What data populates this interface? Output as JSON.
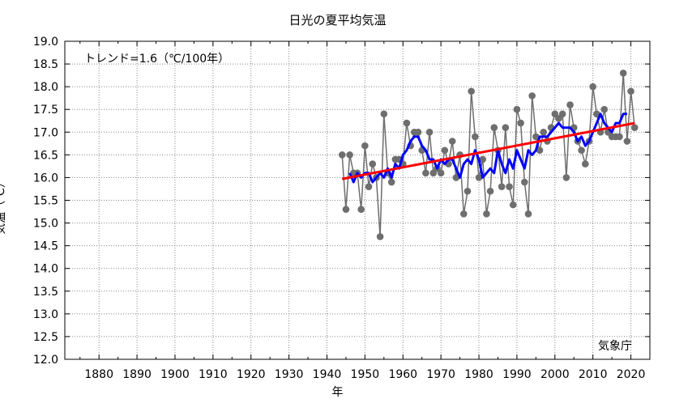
{
  "chart_data": {
    "type": "line",
    "title": "日光の夏平均気温",
    "xlabel": "年",
    "ylabel": "気温（℃）",
    "annotation": "トレンド=1.6（℃/100年）",
    "source_label": "気象庁",
    "xlim": [
      1871,
      2025
    ],
    "ylim": [
      12.0,
      19.0
    ],
    "x_ticks": [
      1880,
      1890,
      1900,
      1910,
      1920,
      1930,
      1940,
      1950,
      1960,
      1970,
      1980,
      1990,
      2000,
      2010,
      2020
    ],
    "y_ticks": [
      "12.0",
      "12.5",
      "13.0",
      "13.5",
      "14.0",
      "14.5",
      "15.0",
      "15.5",
      "16.0",
      "16.5",
      "17.0",
      "17.5",
      "18.0",
      "18.5",
      "19.0"
    ],
    "grid": true,
    "series": [
      {
        "kind": "annual",
        "color": "#6e6e6e",
        "x": [
          1944,
          1945,
          1946,
          1947,
          1948,
          1949,
          1950,
          1951,
          1952,
          1953,
          1954,
          1955,
          1956,
          1957,
          1958,
          1959,
          1960,
          1961,
          1962,
          1963,
          1964,
          1965,
          1966,
          1967,
          1968,
          1969,
          1970,
          1971,
          1972,
          1973,
          1974,
          1975,
          1976,
          1977,
          1978,
          1979,
          1980,
          1981,
          1982,
          1983,
          1984,
          1985,
          1986,
          1987,
          1988,
          1989,
          1990,
          1991,
          1992,
          1993,
          1994,
          1995,
          1996,
          1997,
          1998,
          1999,
          2000,
          2001,
          2002,
          2003,
          2004,
          2005,
          2006,
          2007,
          2008,
          2009,
          2010,
          2011,
          2012,
          2013,
          2014,
          2015,
          2016,
          2017,
          2018,
          2019,
          2020,
          2021
        ],
        "y": [
          16.5,
          15.3,
          16.5,
          16.1,
          16.1,
          15.3,
          16.7,
          15.8,
          16.3,
          16.0,
          14.7,
          17.4,
          16.1,
          15.9,
          16.4,
          16.4,
          16.3,
          17.2,
          16.7,
          17.0,
          17.0,
          16.6,
          16.1,
          17.0,
          16.1,
          16.2,
          16.1,
          16.6,
          16.3,
          16.8,
          16.0,
          16.5,
          15.2,
          15.7,
          17.9,
          16.9,
          16.0,
          16.4,
          15.2,
          15.7,
          17.1,
          16.6,
          15.8,
          17.1,
          15.8,
          15.4,
          17.5,
          17.2,
          15.9,
          15.2,
          17.8,
          16.9,
          16.6,
          17.0,
          16.8,
          17.1,
          17.4,
          17.3,
          17.4,
          16.0,
          17.6,
          17.1,
          16.8,
          16.6,
          16.3,
          16.8,
          18.0,
          17.4,
          17.0,
          17.5,
          17.0,
          16.9,
          16.9,
          16.9,
          18.3,
          16.8,
          17.9,
          17.1
        ]
      },
      {
        "kind": "5-year running mean",
        "color": "#0000ff",
        "x": [
          1946,
          1947,
          1948,
          1949,
          1950,
          1951,
          1952,
          1953,
          1954,
          1955,
          1956,
          1957,
          1958,
          1959,
          1960,
          1961,
          1962,
          1963,
          1964,
          1965,
          1966,
          1967,
          1968,
          1969,
          1970,
          1971,
          1972,
          1973,
          1974,
          1975,
          1976,
          1977,
          1978,
          1979,
          1980,
          1981,
          1982,
          1983,
          1984,
          1985,
          1986,
          1987,
          1988,
          1989,
          1990,
          1991,
          1992,
          1993,
          1994,
          1995,
          1996,
          1997,
          1998,
          1999,
          2000,
          2001,
          2002,
          2003,
          2004,
          2005,
          2006,
          2007,
          2008,
          2009,
          2010,
          2011,
          2012,
          2013,
          2014,
          2015,
          2016,
          2017,
          2018,
          2019
        ],
        "y": [
          16.1,
          15.9,
          16.1,
          16.0,
          16.1,
          16.1,
          15.9,
          16.0,
          16.1,
          16.0,
          16.2,
          16.0,
          16.3,
          16.2,
          16.5,
          16.6,
          16.8,
          16.9,
          16.9,
          16.7,
          16.6,
          16.4,
          16.4,
          16.2,
          16.4,
          16.3,
          16.4,
          16.4,
          16.2,
          16.0,
          16.3,
          16.4,
          16.3,
          16.6,
          16.4,
          16.0,
          16.1,
          16.2,
          16.1,
          16.6,
          16.3,
          16.1,
          16.4,
          16.2,
          16.6,
          16.4,
          16.2,
          16.6,
          16.5,
          16.6,
          16.9,
          16.9,
          16.9,
          17.0,
          17.1,
          17.2,
          17.1,
          17.1,
          17.1,
          17.0,
          16.8,
          16.9,
          16.7,
          16.8,
          17.0,
          17.2,
          17.4,
          17.2,
          17.1,
          17.0,
          17.2,
          17.2,
          17.4,
          17.4
        ]
      },
      {
        "kind": "trend",
        "color": "#ff0000",
        "x": [
          1944,
          2021
        ],
        "y": [
          15.97,
          17.2
        ]
      }
    ]
  }
}
